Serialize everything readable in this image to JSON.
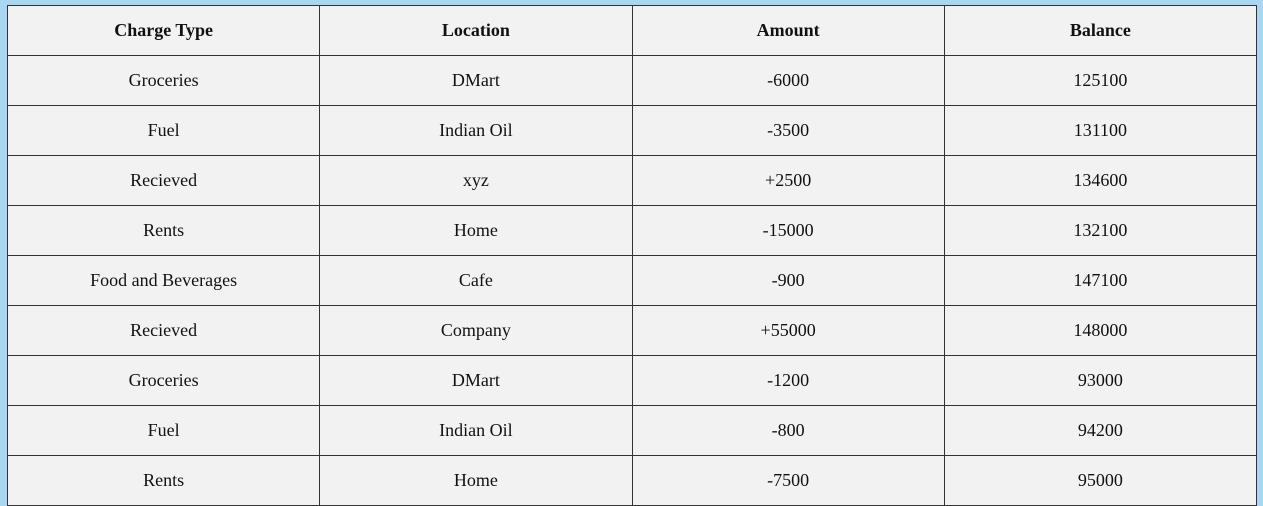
{
  "table": {
    "headers": [
      "Charge Type",
      "Location",
      "Amount",
      "Balance"
    ],
    "rows": [
      [
        "Groceries",
        "DMart",
        "-6000",
        "125100"
      ],
      [
        "Fuel",
        "Indian Oil",
        "-3500",
        "131100"
      ],
      [
        "Recieved",
        "xyz",
        "+2500",
        "134600"
      ],
      [
        "Rents",
        "Home",
        "-15000",
        "132100"
      ],
      [
        "Food and Beverages",
        "Cafe",
        "-900",
        "147100"
      ],
      [
        "Recieved",
        "Company",
        "+55000",
        "148000"
      ],
      [
        "Groceries",
        "DMart",
        "-1200",
        "93000"
      ],
      [
        "Fuel",
        "Indian Oil",
        "-800",
        "94200"
      ],
      [
        "Rents",
        "Home",
        "-7500",
        "95000"
      ]
    ]
  },
  "colors": {
    "page_background": "#a9d6f2",
    "table_background": "#f2f2f2",
    "border": "#333333",
    "text": "#111111"
  }
}
